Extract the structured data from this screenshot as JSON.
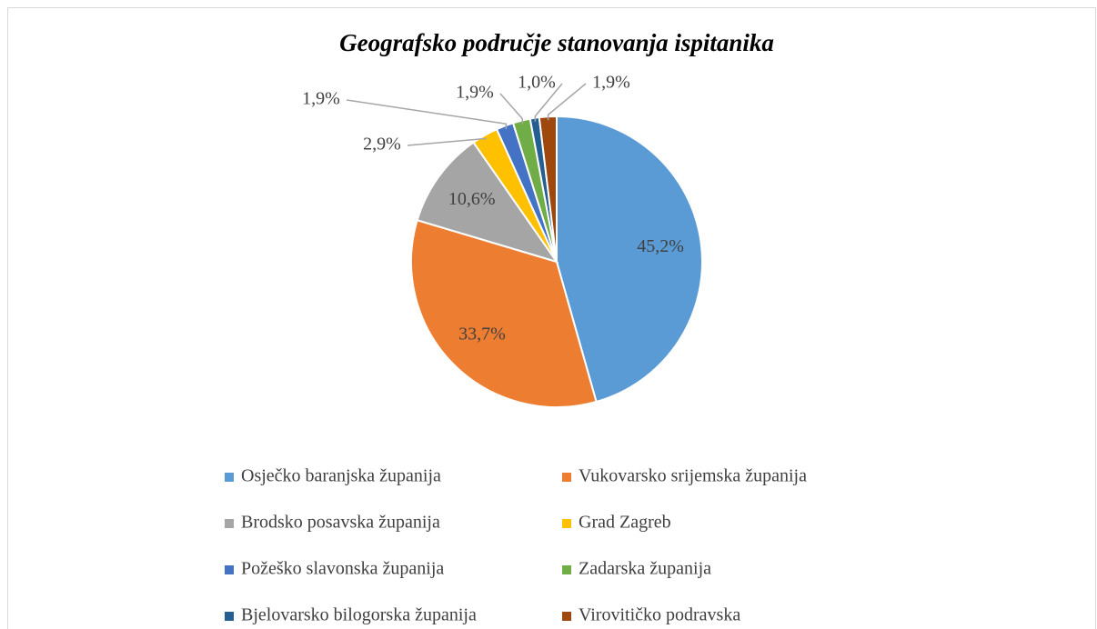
{
  "chart_data": {
    "type": "pie",
    "title": "Geografsko područje stanovanja ispitanika",
    "categories": [
      "Osječko baranjska županija",
      "Vukovarsko srijemska županija",
      "Brodsko posavska županija",
      "Grad Zagreb",
      "Požeško slavonska županija",
      "Zadarska županija",
      "Bjelovarsko bilogorska županija",
      "Virovitičko podravska"
    ],
    "values": [
      45.2,
      33.7,
      10.6,
      2.9,
      1.9,
      1.9,
      1.0,
      1.9
    ],
    "value_labels": [
      "45,2%",
      "33,7%",
      "10,6%",
      "2,9%",
      "1,9%",
      "1,9%",
      "1,0%",
      "1,9%"
    ],
    "colors": [
      "#5b9bd5",
      "#ed7d31",
      "#a5a5a5",
      "#ffc000",
      "#4472c4",
      "#70ad47",
      "#255e91",
      "#9e480e"
    ],
    "legend": "bottom"
  }
}
